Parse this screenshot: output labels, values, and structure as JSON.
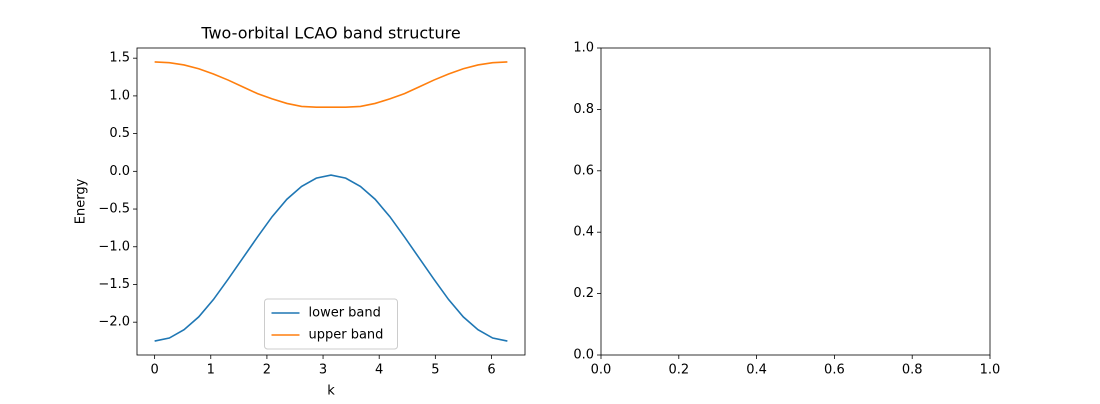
{
  "chart_data": [
    {
      "type": "line",
      "title": "Two-orbital LCAO band structure",
      "xlabel": "k",
      "ylabel": "Energy",
      "x": [
        0,
        0.2618,
        0.5236,
        0.7854,
        1.0472,
        1.309,
        1.5708,
        1.8326,
        2.0944,
        2.3562,
        2.618,
        2.8798,
        3.1416,
        3.4034,
        3.6652,
        3.927,
        4.1888,
        4.4506,
        4.7124,
        4.9742,
        5.236,
        5.4978,
        5.7596,
        6.0214,
        6.2832
      ],
      "series": [
        {
          "name": "lower band",
          "color": "#1f77b4",
          "values": [
            -2.25,
            -2.21,
            -2.1,
            -1.93,
            -1.7,
            -1.43,
            -1.15,
            -0.87,
            -0.6,
            -0.37,
            -0.2,
            -0.09,
            -0.05,
            -0.09,
            -0.2,
            -0.37,
            -0.6,
            -0.87,
            -1.15,
            -1.43,
            -1.7,
            -1.93,
            -2.1,
            -2.21,
            -2.25
          ]
        },
        {
          "name": "upper band",
          "color": "#ff7f0e",
          "values": [
            1.45,
            1.44,
            1.41,
            1.36,
            1.29,
            1.21,
            1.12,
            1.03,
            0.96,
            0.9,
            0.86,
            0.85,
            0.85,
            0.85,
            0.86,
            0.9,
            0.96,
            1.03,
            1.12,
            1.21,
            1.29,
            1.36,
            1.41,
            1.44,
            1.45
          ]
        }
      ],
      "xlim": [
        -0.314,
        6.597
      ],
      "xticks": [
        0,
        1,
        2,
        3,
        4,
        5,
        6
      ],
      "ylim": [
        -2.435,
        1.635
      ],
      "yticks": [
        {
          "value": -2.0,
          "label": "−2.0"
        },
        {
          "value": -1.5,
          "label": "−1.5"
        },
        {
          "value": -1.0,
          "label": "−1.0"
        },
        {
          "value": -0.5,
          "label": "−0.5"
        },
        {
          "value": 0,
          "label": "0.0"
        },
        0.5,
        {
          "value": 1,
          "label": "1.0"
        },
        1.5
      ],
      "legend": "lower center"
    },
    {
      "type": "line",
      "xlim": [
        0,
        1
      ],
      "xticks": [
        {
          "value": 0,
          "label": "0.0"
        },
        0.2,
        0.4,
        0.6,
        0.8,
        {
          "value": 1,
          "label": "1.0"
        }
      ],
      "ylim": [
        0,
        1
      ],
      "yticks": [
        {
          "value": 0,
          "label": "0.0"
        },
        0.2,
        0.4,
        0.6,
        0.8,
        {
          "value": 1,
          "label": "1.0"
        }
      ]
    }
  ]
}
